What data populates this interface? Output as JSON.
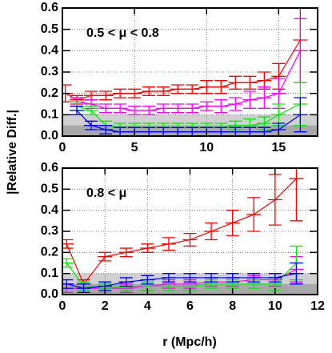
{
  "chart_data": [
    {
      "type": "line",
      "annotation": "0.5 < μ < 0.8",
      "ylabel": "|Relative Diff.|",
      "xlim": [
        0,
        17.7
      ],
      "ylim": [
        0,
        0.6
      ],
      "xticks": [
        0,
        5,
        10,
        15
      ],
      "yticks": [
        {
          "value": 0,
          "label": "0.0"
        },
        0.1,
        0.2,
        0.3,
        0.4,
        0.5,
        0.6
      ],
      "grid": true,
      "bands": [
        {
          "value": 0.1,
          "color": "#d0d0d0"
        },
        {
          "value": 0.05,
          "color": "#a8a8a8"
        }
      ],
      "series": [
        {
          "color": "#ff0000",
          "x": [
            0.2,
            1,
            2,
            3,
            4,
            5,
            6,
            7,
            8,
            9,
            10,
            11,
            12,
            13,
            14,
            15,
            16.5
          ],
          "values": [
            0.2,
            0.17,
            0.19,
            0.19,
            0.2,
            0.2,
            0.21,
            0.21,
            0.22,
            0.22,
            0.23,
            0.23,
            0.25,
            0.25,
            0.26,
            0.28,
            0.45
          ],
          "errors": [
            0.04,
            0.02,
            0.02,
            0.02,
            0.02,
            0.02,
            0.02,
            0.02,
            0.02,
            0.02,
            0.03,
            0.03,
            0.03,
            0.03,
            0.04,
            0.06,
            0.2
          ]
        },
        {
          "color": "#ff00ff",
          "x": [
            1,
            2,
            3,
            4,
            5,
            6,
            7,
            8,
            9,
            10,
            11,
            12,
            13,
            14,
            15,
            16.5
          ],
          "values": [
            0.16,
            0.15,
            0.13,
            0.13,
            0.12,
            0.12,
            0.13,
            0.13,
            0.13,
            0.14,
            0.14,
            0.15,
            0.17,
            0.18,
            0.2,
            0.4
          ],
          "errors": [
            0.02,
            0.02,
            0.02,
            0.02,
            0.02,
            0.02,
            0.02,
            0.02,
            0.02,
            0.02,
            0.03,
            0.03,
            0.04,
            0.05,
            0.07,
            0.15
          ]
        },
        {
          "color": "#00ee00",
          "x": [
            1,
            2,
            3,
            4,
            5,
            6,
            7,
            8,
            9,
            10,
            11,
            12,
            13,
            14,
            15,
            16.5
          ],
          "values": [
            0.14,
            0.12,
            0.05,
            0.04,
            0.04,
            0.04,
            0.04,
            0.04,
            0.04,
            0.04,
            0.04,
            0.05,
            0.05,
            0.06,
            0.1,
            0.15
          ],
          "errors": [
            0.02,
            0.02,
            0.02,
            0.02,
            0.02,
            0.02,
            0.02,
            0.02,
            0.02,
            0.02,
            0.02,
            0.02,
            0.03,
            0.03,
            0.05,
            0.1
          ]
        },
        {
          "color": "#0000ff",
          "x": [
            1,
            2,
            3,
            4,
            5,
            6,
            7,
            8,
            9,
            10,
            11,
            12,
            13,
            14,
            15,
            16.5
          ],
          "values": [
            0.12,
            0.05,
            0.03,
            0.02,
            0.02,
            0.02,
            0.02,
            0.02,
            0.02,
            0.02,
            0.02,
            0.02,
            0.02,
            0.02,
            0.03,
            0.1
          ],
          "errors": [
            0.02,
            0.02,
            0.02,
            0.02,
            0.02,
            0.02,
            0.02,
            0.02,
            0.02,
            0.02,
            0.02,
            0.02,
            0.02,
            0.02,
            0.03,
            0.08
          ]
        }
      ]
    },
    {
      "type": "line",
      "annotation": "0.8 < μ",
      "xlabel": "r (Mpc/h)",
      "xlim": [
        0,
        12
      ],
      "ylim": [
        0,
        0.6
      ],
      "xticks": [
        0,
        2,
        4,
        6,
        8,
        10,
        12
      ],
      "yticks": [
        {
          "value": 0,
          "label": "0.0"
        },
        0.1,
        0.2,
        0.3,
        0.4,
        0.5,
        0.6
      ],
      "grid": true,
      "bands": [
        {
          "value": 0.1,
          "color": "#d0d0d0"
        },
        {
          "value": 0.05,
          "color": "#a8a8a8"
        }
      ],
      "series": [
        {
          "color": "#ff0000",
          "x": [
            0.2,
            1,
            2,
            3,
            4,
            5,
            6,
            7,
            8,
            9,
            10,
            11
          ],
          "values": [
            0.24,
            0.05,
            0.18,
            0.2,
            0.22,
            0.24,
            0.26,
            0.3,
            0.34,
            0.38,
            0.45,
            0.55
          ],
          "errors": [
            0.02,
            0.02,
            0.02,
            0.02,
            0.02,
            0.03,
            0.03,
            0.04,
            0.06,
            0.08,
            0.12,
            0.2
          ]
        },
        {
          "color": "#ff00ff",
          "x": [
            0.2,
            1,
            2,
            3,
            4,
            5,
            6,
            7,
            8,
            9,
            10,
            11
          ],
          "values": [
            0.03,
            0.03,
            0.03,
            0.03,
            0.04,
            0.05,
            0.05,
            0.06,
            0.06,
            0.07,
            0.07,
            0.12
          ],
          "errors": [
            0.02,
            0.02,
            0.02,
            0.02,
            0.02,
            0.02,
            0.02,
            0.02,
            0.02,
            0.02,
            0.03,
            0.06
          ]
        },
        {
          "color": "#00ee00",
          "x": [
            0.2,
            1,
            2,
            3,
            4,
            5,
            6,
            7,
            8,
            9,
            10,
            11
          ],
          "values": [
            0.15,
            0.04,
            0.03,
            0.04,
            0.04,
            0.04,
            0.04,
            0.05,
            0.05,
            0.05,
            0.05,
            0.15
          ],
          "errors": [
            0.02,
            0.02,
            0.02,
            0.02,
            0.02,
            0.02,
            0.02,
            0.02,
            0.02,
            0.02,
            0.03,
            0.08
          ]
        },
        {
          "color": "#0000ff",
          "x": [
            0.2,
            1,
            2,
            3,
            4,
            5,
            6,
            7,
            8,
            9,
            10,
            11
          ],
          "values": [
            0.05,
            0.03,
            0.04,
            0.06,
            0.07,
            0.08,
            0.08,
            0.08,
            0.08,
            0.08,
            0.08,
            0.1
          ],
          "errors": [
            0.02,
            0.02,
            0.02,
            0.02,
            0.02,
            0.02,
            0.02,
            0.02,
            0.02,
            0.02,
            0.02,
            0.05
          ]
        }
      ]
    }
  ]
}
